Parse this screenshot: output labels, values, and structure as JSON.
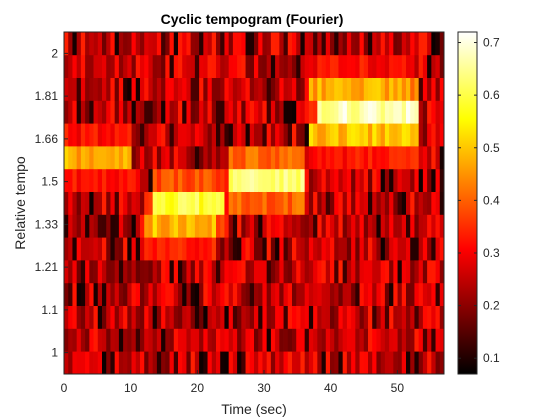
{
  "chart_data": {
    "type": "heatmap",
    "title": "Cyclic tempogram (Fourier)",
    "xlabel": "Time (sec)",
    "ylabel": "Relative tempo",
    "xlim": [
      0,
      57
    ],
    "x_ticks": [
      0,
      10,
      20,
      30,
      40,
      50
    ],
    "y_ticks": [
      "1",
      "1.1",
      "1.21",
      "1.33",
      "1.5",
      "1.66",
      "1.81",
      "2"
    ],
    "colormap": "hot",
    "color_range": [
      0.07,
      0.72
    ],
    "colorbar_ticks": [
      0.1,
      0.2,
      0.3,
      0.4,
      0.5,
      0.6,
      0.7
    ],
    "time_bins": 90,
    "tempo_bins": 15,
    "hotspots": [
      {
        "t_start": 0,
        "t_end": 10,
        "tempo_row": 9,
        "level": 0.5
      },
      {
        "t_start": 13,
        "t_end": 24,
        "tempo_row": 7,
        "level": 0.62
      },
      {
        "t_start": 12,
        "t_end": 23,
        "tempo_row": 6,
        "level": 0.52
      },
      {
        "t_start": 25,
        "t_end": 36,
        "tempo_row": 8,
        "level": 0.66
      },
      {
        "t_start": 38,
        "t_end": 53,
        "tempo_row": 11,
        "level": 0.7
      },
      {
        "t_start": 37,
        "t_end": 53,
        "tempo_row": 10,
        "level": 0.52
      },
      {
        "t_start": 37,
        "t_end": 52,
        "tempo_row": 12,
        "level": 0.5
      }
    ]
  }
}
